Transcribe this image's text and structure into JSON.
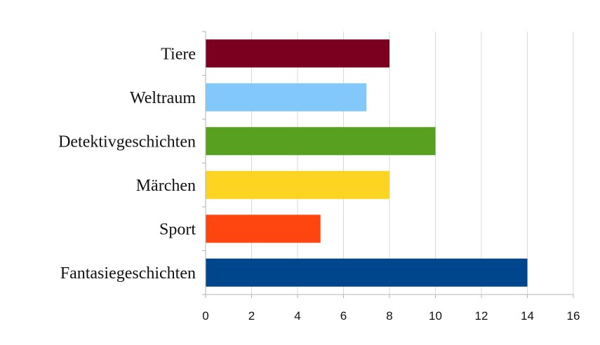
{
  "chart_data": {
    "type": "bar",
    "orientation": "horizontal",
    "categories": [
      "Tiere",
      "Weltraum",
      "Detektivgeschichten",
      "Märchen",
      "Sport",
      "Fantasiegeschichten"
    ],
    "values": [
      8,
      7,
      10,
      8,
      5,
      14
    ],
    "colors": [
      "#7b0020",
      "#82c8fa",
      "#58a120",
      "#fdd421",
      "#ff4510",
      "#00468c"
    ],
    "xlim": [
      0,
      16
    ],
    "xticks": [
      "0",
      "2",
      "4",
      "6",
      "8",
      "10",
      "12",
      "14",
      "16"
    ],
    "grid": true,
    "legend": false
  }
}
